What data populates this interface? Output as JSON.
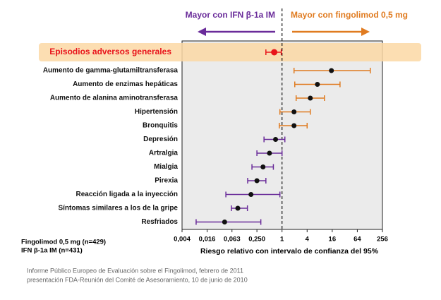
{
  "chart_data": {
    "type": "forest",
    "header_left": "Mayor con IFN β-1a IM",
    "header_right": "Mayor con fingolimod 0,5 mg",
    "header_left_color": "#6a2c9a",
    "header_right_color": "#e07b20",
    "categories": [
      "Episodios adversos generales",
      "Aumento de gamma-glutamiltransferasa",
      "Aumento de enzimas hepáticas",
      "Aumento de alanina aminotransferasa",
      "Hipertensión",
      "Bronquitis",
      "Depresión",
      "Artralgia",
      "Mialgia",
      "Pirexia",
      "Reacción ligada a la inyección",
      "Síntomas similares a los de la gripe",
      "Resfriados"
    ],
    "values": [
      0.65,
      15.3,
      7.05,
      4.77,
      1.94,
      1.94,
      0.7,
      0.5,
      0.35,
      0.25,
      0.18,
      0.087,
      0.042
    ],
    "ci_low": [
      0.41,
      1.94,
      2.02,
      2.18,
      0.89,
      0.86,
      0.37,
      0.25,
      0.19,
      0.15,
      0.045,
      0.061,
      0.0087
    ],
    "ci_high": [
      0.96,
      131,
      24.6,
      10.4,
      4.77,
      4,
      1.17,
      1,
      0.62,
      0.41,
      0.89,
      0.148,
      0.31
    ],
    "colors": [
      "#e8141b",
      "#e07b20",
      "#e07b20",
      "#e07b20",
      "#e07b20",
      "#e07b20",
      "#6a2c9a",
      "#6a2c9a",
      "#6a2c9a",
      "#6a2c9a",
      "#6a2c9a",
      "#6a2c9a",
      "#6a2c9a"
    ],
    "point_colors": [
      "#e8141b",
      "#111111",
      "#111111",
      "#111111",
      "#111111",
      "#111111",
      "#111111",
      "#111111",
      "#111111",
      "#111111",
      "#111111",
      "#111111",
      "#111111"
    ],
    "x_scale": "log",
    "reference": 1,
    "xlim": [
      0.004,
      256
    ],
    "xticks": [
      {
        "value": 0.004,
        "label": "0,004"
      },
      {
        "value": 0.016,
        "label": "0,016"
      },
      {
        "value": 0.063,
        "label": "0,063"
      },
      {
        "value": 0.25,
        "label": "0,250"
      },
      1,
      4,
      16,
      64,
      256
    ],
    "xlabel": "Riesgo relativo con intervalo de confianza del 95%",
    "notes": [
      "Fingolimod 0,5 mg (n=429)",
      "IFN β-1a IM (n=431)"
    ],
    "sources": [
      "Informe Público Europeo de Evaluación sobre el Fingolimod, febrero de 2011",
      "presentación FDA-Reunión del Comité de Asesoramiento, 10 de junio de 2010"
    ]
  }
}
